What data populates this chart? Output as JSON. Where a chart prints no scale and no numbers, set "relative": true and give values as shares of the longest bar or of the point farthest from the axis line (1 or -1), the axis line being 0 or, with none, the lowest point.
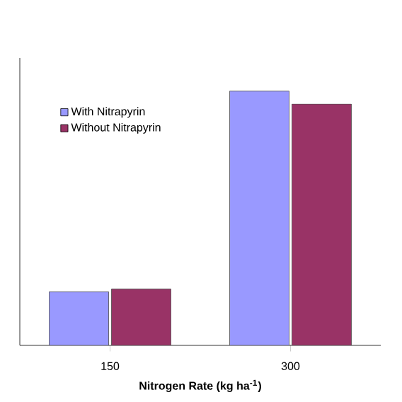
{
  "chart_data": {
    "type": "bar",
    "xlabel": "Nitrogen Rate (kg ha$^{-1}$)",
    "categories": [
      "150",
      "300"
    ],
    "relative": true,
    "legend": "top left",
    "series": [
      {
        "name": "With Nitrapyrin",
        "color": "#9999ff",
        "values": [
          0.211,
          1
        ]
      },
      {
        "name": "Without Nitrapyrin",
        "color": "#993366",
        "values": [
          0.222,
          0.949
        ]
      }
    ]
  }
}
